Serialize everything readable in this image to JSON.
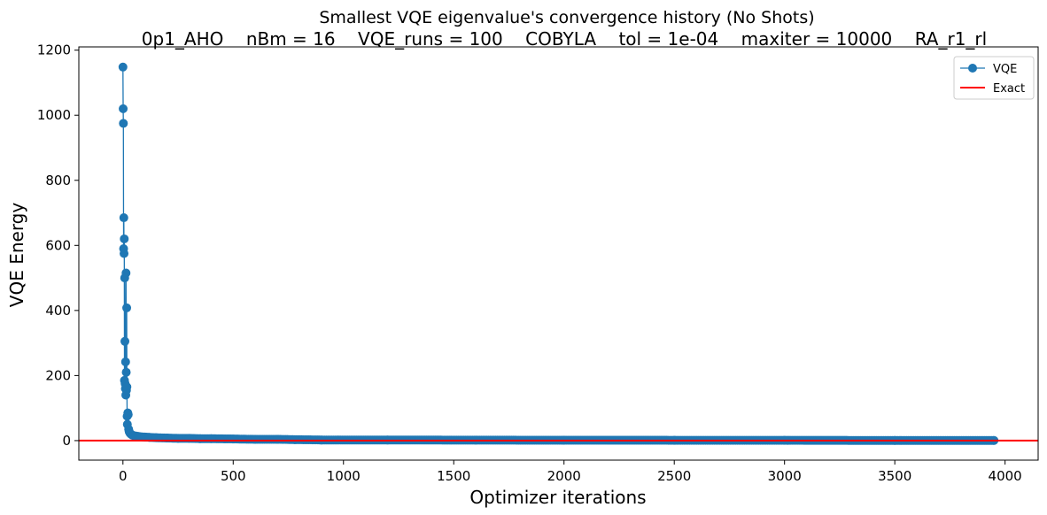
{
  "chart_data": {
    "type": "line",
    "title": "Smallest VQE eigenvalue's convergence history (No Shots)",
    "subtitle": "0p1_AHO    nBm = 16    VQE_runs = 100    COBYLA    tol = 1e-04    maxiter = 10000    RA_r1_rl",
    "xlabel": "Optimizer iterations",
    "ylabel": "VQE Energy",
    "xlim": [
      -200,
      4150
    ],
    "ylim": [
      -60,
      1210
    ],
    "xticks": [
      0,
      500,
      1000,
      1500,
      2000,
      2500,
      3000,
      3500,
      4000
    ],
    "yticks": [
      0,
      200,
      400,
      600,
      800,
      1000,
      1200
    ],
    "grid": false,
    "legend_position": "upper-right",
    "series": [
      {
        "name": "VQE",
        "color": "#1f77b4",
        "marker": "circle",
        "x": [
          0,
          1,
          2,
          3,
          4,
          5,
          6,
          7,
          8,
          9,
          10,
          11,
          12,
          13,
          14,
          15,
          16,
          17,
          18,
          19,
          20,
          22,
          24,
          26,
          28,
          30,
          33,
          36,
          40,
          45,
          50,
          60,
          70,
          80,
          100,
          120,
          150,
          200,
          250,
          300,
          350,
          400,
          500,
          600,
          700,
          780,
          900,
          1200,
          1600,
          2000,
          2500,
          3000,
          3500,
          3950
        ],
        "values": [
          1148,
          1020,
          975,
          590,
          685,
          575,
          620,
          185,
          500,
          305,
          175,
          160,
          242,
          140,
          515,
          210,
          155,
          408,
          165,
          75,
          50,
          85,
          80,
          35,
          28,
          25,
          22,
          20,
          18,
          16,
          15,
          14,
          13,
          12,
          11,
          10,
          9,
          8,
          7,
          7,
          6,
          6,
          5,
          4,
          4,
          3,
          2,
          2,
          1.5,
          1.2,
          1.0,
          0.8,
          0.6,
          0.5
        ]
      },
      {
        "name": "Exact",
        "color": "#ff0000",
        "marker": "none",
        "y": 0
      }
    ]
  }
}
